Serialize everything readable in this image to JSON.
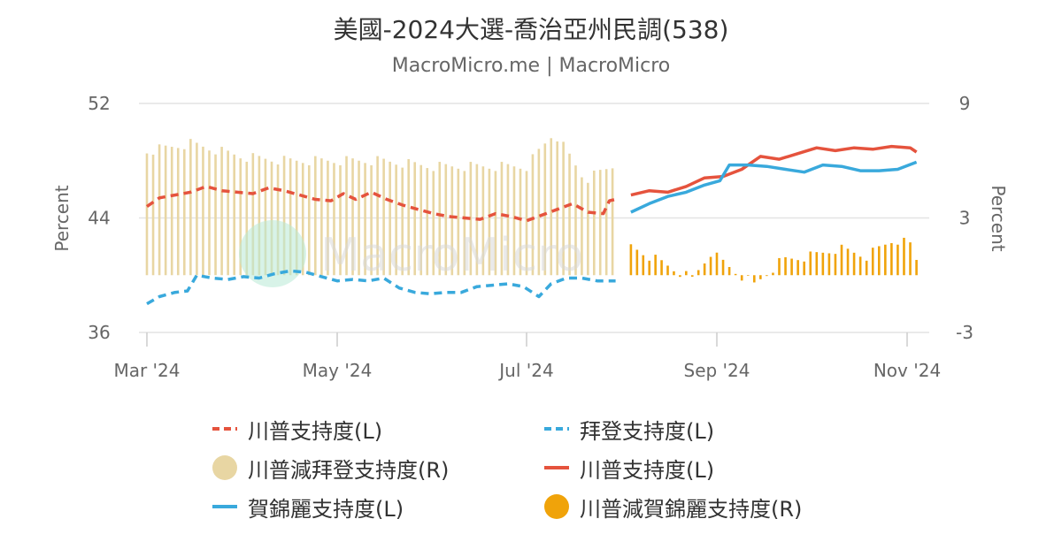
{
  "title": "美國-2024大選-喬治亞州民調(538)",
  "subtitle": "MacroMicro.me | MacroMicro",
  "watermark": "MacroMicro",
  "chart_data": {
    "type": "line+bar",
    "x_ticks": [
      "Mar '24",
      "May '24",
      "Jul '24",
      "Sep '24",
      "Nov '24"
    ],
    "x_range": [
      "2024-02-29",
      "2024-11-05"
    ],
    "y_left": {
      "label": "Percent",
      "ticks": [
        "52",
        "44",
        "36"
      ],
      "range": [
        36,
        52
      ]
    },
    "y_right": {
      "label": "Percent",
      "ticks": [
        "9",
        "3",
        "-3"
      ],
      "range": [
        -3,
        9
      ]
    },
    "grid": true,
    "legend_position": "bottom",
    "series": [
      {
        "name": "川普支持度(L)",
        "axis": "left",
        "style": "dashed",
        "color": "#e5533d",
        "points": [
          [
            "2024-03-01",
            44.8
          ],
          [
            "2024-03-05",
            45.4
          ],
          [
            "2024-03-10",
            45.6
          ],
          [
            "2024-03-15",
            45.8
          ],
          [
            "2024-03-20",
            46.2
          ],
          [
            "2024-03-25",
            45.9
          ],
          [
            "2024-03-30",
            45.8
          ],
          [
            "2024-04-04",
            45.7
          ],
          [
            "2024-04-09",
            46.1
          ],
          [
            "2024-04-14",
            45.9
          ],
          [
            "2024-04-19",
            45.6
          ],
          [
            "2024-04-24",
            45.3
          ],
          [
            "2024-04-29",
            45.2
          ],
          [
            "2024-05-03",
            45.7
          ],
          [
            "2024-05-07",
            45.3
          ],
          [
            "2024-05-12",
            45.8
          ],
          [
            "2024-05-17",
            45.3
          ],
          [
            "2024-05-22",
            44.9
          ],
          [
            "2024-05-27",
            44.6
          ],
          [
            "2024-06-01",
            44.3
          ],
          [
            "2024-06-06",
            44.1
          ],
          [
            "2024-06-11",
            44.0
          ],
          [
            "2024-06-16",
            43.9
          ],
          [
            "2024-06-21",
            44.3
          ],
          [
            "2024-06-26",
            44.1
          ],
          [
            "2024-07-01",
            43.8
          ],
          [
            "2024-07-06",
            44.2
          ],
          [
            "2024-07-11",
            44.6
          ],
          [
            "2024-07-16",
            45.0
          ],
          [
            "2024-07-21",
            44.4
          ],
          [
            "2024-07-26",
            44.3
          ],
          [
            "2024-07-28",
            45.2
          ],
          [
            "2024-07-30",
            45.3
          ]
        ]
      },
      {
        "name": "拜登支持度(L)",
        "axis": "left",
        "style": "dashed",
        "color": "#39a9dc",
        "points": [
          [
            "2024-03-01",
            38.0
          ],
          [
            "2024-03-05",
            38.5
          ],
          [
            "2024-03-10",
            38.8
          ],
          [
            "2024-03-14",
            38.9
          ],
          [
            "2024-03-17",
            40.0
          ],
          [
            "2024-03-22",
            39.8
          ],
          [
            "2024-03-27",
            39.7
          ],
          [
            "2024-04-01",
            39.9
          ],
          [
            "2024-04-06",
            39.8
          ],
          [
            "2024-04-11",
            40.1
          ],
          [
            "2024-04-16",
            40.3
          ],
          [
            "2024-04-21",
            40.2
          ],
          [
            "2024-04-26",
            39.9
          ],
          [
            "2024-05-01",
            39.6
          ],
          [
            "2024-05-06",
            39.7
          ],
          [
            "2024-05-11",
            39.6
          ],
          [
            "2024-05-16",
            39.8
          ],
          [
            "2024-05-21",
            39.1
          ],
          [
            "2024-05-26",
            38.8
          ],
          [
            "2024-05-31",
            38.7
          ],
          [
            "2024-06-05",
            38.8
          ],
          [
            "2024-06-10",
            38.8
          ],
          [
            "2024-06-15",
            39.2
          ],
          [
            "2024-06-20",
            39.3
          ],
          [
            "2024-06-25",
            39.4
          ],
          [
            "2024-06-30",
            39.2
          ],
          [
            "2024-07-05",
            38.5
          ],
          [
            "2024-07-09",
            39.4
          ],
          [
            "2024-07-14",
            39.8
          ],
          [
            "2024-07-19",
            39.8
          ],
          [
            "2024-07-24",
            39.6
          ],
          [
            "2024-07-30",
            39.6
          ]
        ]
      },
      {
        "name": "川普減拜登支持度(R)",
        "axis": "right",
        "style": "bars",
        "color": "#e8d6a3",
        "points": [
          [
            "2024-03-01",
            6.5
          ],
          [
            "2024-03-15",
            6.9
          ],
          [
            "2024-04-01",
            6.2
          ],
          [
            "2024-04-15",
            6.0
          ],
          [
            "2024-05-01",
            6.0
          ],
          [
            "2024-05-15",
            6.0
          ],
          [
            "2024-06-01",
            5.7
          ],
          [
            "2024-06-15",
            5.7
          ],
          [
            "2024-07-01",
            5.7
          ],
          [
            "2024-07-10",
            7.5
          ],
          [
            "2024-07-20",
            5.0
          ],
          [
            "2024-07-30",
            5.8
          ]
        ]
      },
      {
        "name": "川普支持度(L)",
        "axis": "left",
        "style": "solid",
        "color": "#e5533d",
        "points": [
          [
            "2024-08-04",
            45.6
          ],
          [
            "2024-08-10",
            45.9
          ],
          [
            "2024-08-16",
            45.8
          ],
          [
            "2024-08-22",
            46.2
          ],
          [
            "2024-08-28",
            46.8
          ],
          [
            "2024-09-03",
            46.9
          ],
          [
            "2024-09-09",
            47.4
          ],
          [
            "2024-09-15",
            48.3
          ],
          [
            "2024-09-21",
            48.1
          ],
          [
            "2024-09-27",
            48.5
          ],
          [
            "2024-10-03",
            48.9
          ],
          [
            "2024-10-09",
            48.7
          ],
          [
            "2024-10-15",
            48.9
          ],
          [
            "2024-10-21",
            48.8
          ],
          [
            "2024-10-27",
            49.0
          ],
          [
            "2024-11-02",
            48.9
          ],
          [
            "2024-11-04",
            48.6
          ]
        ]
      },
      {
        "name": "賀錦麗支持度(L)",
        "axis": "left",
        "style": "solid",
        "color": "#39a9dc",
        "points": [
          [
            "2024-08-04",
            44.4
          ],
          [
            "2024-08-10",
            45.0
          ],
          [
            "2024-08-16",
            45.5
          ],
          [
            "2024-08-22",
            45.8
          ],
          [
            "2024-08-28",
            46.3
          ],
          [
            "2024-09-02",
            46.6
          ],
          [
            "2024-09-05",
            47.7
          ],
          [
            "2024-09-11",
            47.7
          ],
          [
            "2024-09-17",
            47.6
          ],
          [
            "2024-09-23",
            47.4
          ],
          [
            "2024-09-29",
            47.2
          ],
          [
            "2024-10-05",
            47.7
          ],
          [
            "2024-10-11",
            47.6
          ],
          [
            "2024-10-17",
            47.3
          ],
          [
            "2024-10-23",
            47.3
          ],
          [
            "2024-10-29",
            47.4
          ],
          [
            "2024-11-04",
            47.9
          ]
        ]
      },
      {
        "name": "川普減賀錦麗支持度(R)",
        "axis": "right",
        "style": "bars",
        "color": "#f0a30a",
        "points": [
          [
            "2024-08-04",
            1.5
          ],
          [
            "2024-08-16",
            0.5
          ],
          [
            "2024-08-24",
            -0.2
          ],
          [
            "2024-08-30",
            1.2
          ],
          [
            "2024-09-06",
            0.3
          ],
          [
            "2024-09-13",
            -0.5
          ],
          [
            "2024-09-22",
            0.8
          ],
          [
            "2024-10-01",
            1.0
          ],
          [
            "2024-10-10",
            1.4
          ],
          [
            "2024-10-19",
            1.0
          ],
          [
            "2024-10-28",
            1.9
          ],
          [
            "2024-11-02",
            1.6
          ],
          [
            "2024-11-04",
            0.8
          ]
        ]
      }
    ]
  }
}
